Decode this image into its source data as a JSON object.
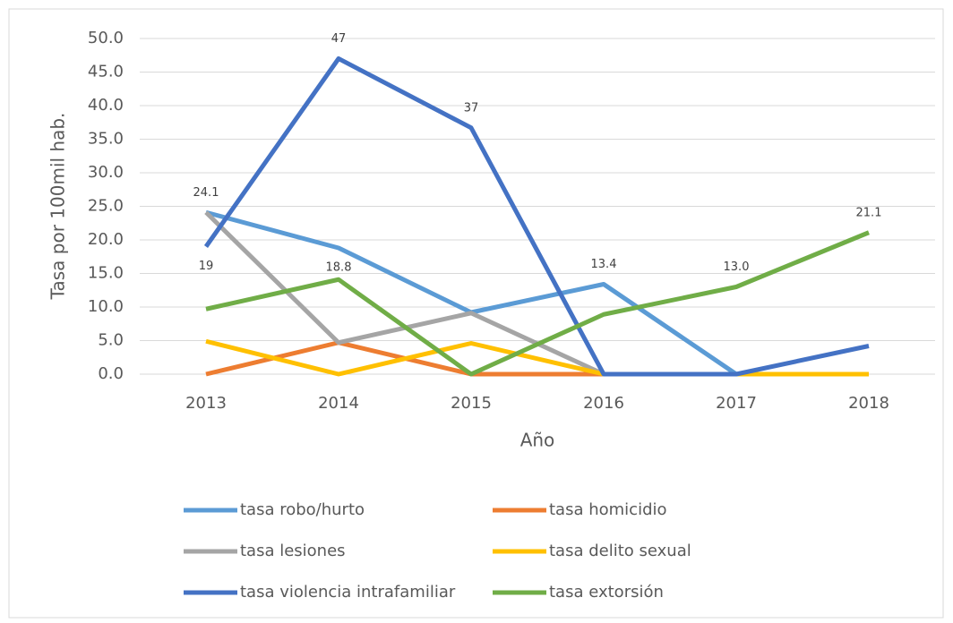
{
  "chart_data": {
    "type": "line",
    "categories": [
      "2013",
      "2014",
      "2015",
      "2016",
      "2017",
      "2018"
    ],
    "x_label": "Año",
    "y_label": "Tasa por 100mil hab.",
    "ylim": [
      0,
      50
    ],
    "yticks": [
      {
        "value": 0,
        "label": "0.0"
      },
      {
        "value": 5,
        "label": "5.0"
      },
      {
        "value": 10,
        "label": "10.0"
      },
      {
        "value": 15,
        "label": "15.0"
      },
      {
        "value": 20,
        "label": "20.0"
      },
      {
        "value": 25,
        "label": "25.0"
      },
      {
        "value": 30,
        "label": "30.0"
      },
      {
        "value": 35,
        "label": "35.0"
      },
      {
        "value": 40,
        "label": "40.0"
      },
      {
        "value": 45,
        "label": "45.0"
      },
      {
        "value": 50,
        "label": "50.0"
      }
    ],
    "grid": true,
    "legend": "bottom",
    "series": [
      {
        "name": "tasa robo/hurto",
        "color": "#5b9bd5",
        "values": [
          24.1,
          18.8,
          9.2,
          13.4,
          0,
          0
        ],
        "value_labels": [
          "24.1",
          "18.8",
          null,
          "13.4",
          null,
          null
        ]
      },
      {
        "name": "tasa homicidio",
        "color": "#ed7d31",
        "values": [
          0,
          4.7,
          0,
          0,
          0,
          0
        ]
      },
      {
        "name": "tasa lesiones",
        "color": "#a5a5a5",
        "values": [
          24.1,
          4.7,
          9.1,
          0,
          0,
          0
        ]
      },
      {
        "name": "tasa delito sexual",
        "color": "#ffc000",
        "values": [
          4.9,
          0,
          4.6,
          0,
          0,
          0
        ]
      },
      {
        "name": "tasa violencia intrafamiliar",
        "color": "#4472c4",
        "values": [
          19,
          47,
          36.7,
          0,
          0,
          4.2
        ],
        "value_labels": [
          "19",
          "47",
          "37",
          null,
          null,
          null
        ]
      },
      {
        "name": "tasa extorsión",
        "color": "#70ad47",
        "values": [
          9.7,
          14.1,
          0,
          8.9,
          13.0,
          21.1
        ],
        "value_labels": [
          null,
          null,
          null,
          null,
          "13.0",
          "21.1"
        ]
      }
    ]
  }
}
